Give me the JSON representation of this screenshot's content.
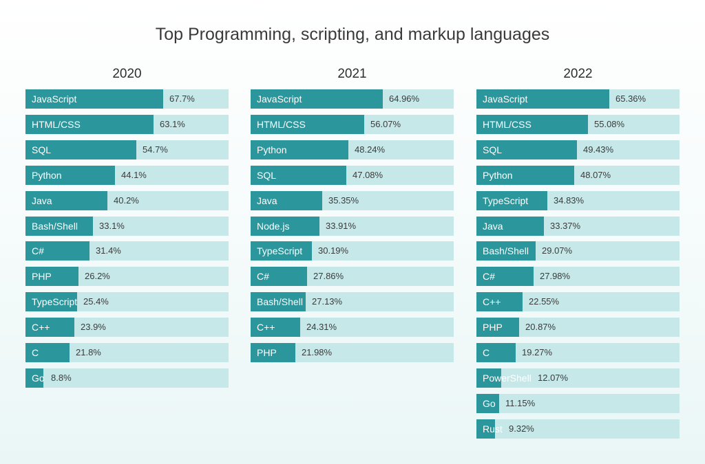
{
  "colors": {
    "bar": "#2b969c",
    "track": "#c6e8e9",
    "label": "#ffffff",
    "value": "#3b3b3b"
  },
  "chart_data": {
    "type": "bar",
    "title": "Top Programming, scripting, and markup languages",
    "orientation": "horizontal",
    "xlim": [
      0,
      100
    ],
    "unit": "%",
    "panels": [
      {
        "title": "2020",
        "categories": [
          "JavaScript",
          "HTML/CSS",
          "SQL",
          "Python",
          "Java",
          "Bash/Shell",
          "C#",
          "PHP",
          "TypeScript",
          "C++",
          "C",
          "Go"
        ],
        "values": [
          67.7,
          63.1,
          54.7,
          44.1,
          40.2,
          33.1,
          31.4,
          26.2,
          25.4,
          23.9,
          21.8,
          8.8
        ],
        "labels": [
          "67.7%",
          "63.1%",
          "54.7%",
          "44.1%",
          "40.2%",
          "33.1%",
          "31.4%",
          "26.2%",
          "25.4%",
          "23.9%",
          "21.8%",
          "8.8%"
        ]
      },
      {
        "title": "2021",
        "categories": [
          "JavaScript",
          "HTML/CSS",
          "Python",
          "SQL",
          "Java",
          "Node.js",
          "TypeScript",
          "C#",
          "Bash/Shell",
          "C++",
          "PHP"
        ],
        "values": [
          64.96,
          56.07,
          48.24,
          47.08,
          35.35,
          33.91,
          30.19,
          27.86,
          27.13,
          24.31,
          21.98
        ],
        "labels": [
          "64.96%",
          "56.07%",
          "48.24%",
          "47.08%",
          "35.35%",
          "33.91%",
          "30.19%",
          "27.86%",
          "27.13%",
          "24.31%",
          "21.98%"
        ]
      },
      {
        "title": "2022",
        "categories": [
          "JavaScript",
          "HTML/CSS",
          "SQL",
          "Python",
          "TypeScript",
          "Java",
          "Bash/Shell",
          "C#",
          "C++",
          "PHP",
          "C",
          "PowerShell",
          "Go",
          "Rust"
        ],
        "values": [
          65.36,
          55.08,
          49.43,
          48.07,
          34.83,
          33.37,
          29.07,
          27.98,
          22.55,
          20.87,
          19.27,
          12.07,
          11.15,
          9.32
        ],
        "labels": [
          "65.36%",
          "55.08%",
          "49.43%",
          "48.07%",
          "34.83%",
          "33.37%",
          "29.07%",
          "27.98%",
          "22.55%",
          "20.87%",
          "19.27%",
          "12.07%",
          "11.15%",
          "9.32%"
        ]
      }
    ]
  }
}
